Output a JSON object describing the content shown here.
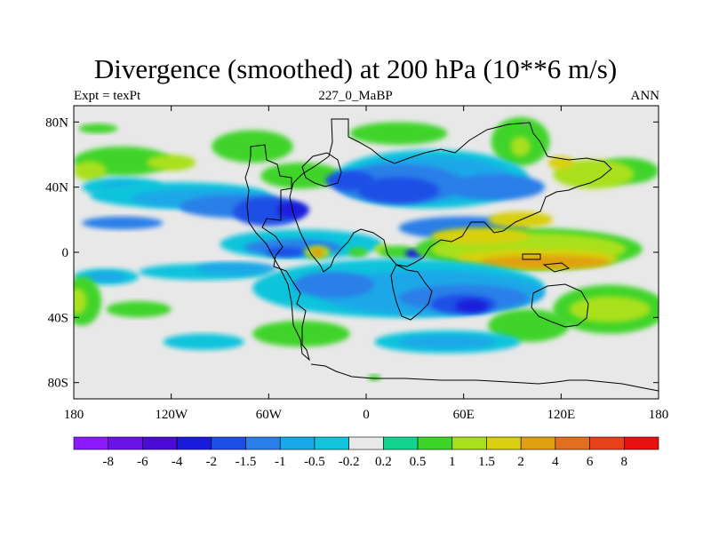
{
  "chart_data": {
    "type": "heatmap",
    "title": "Divergence (smoothed) at 200 hPa (10**6 m/s)",
    "subtitle_left": "Expt = texPt",
    "subtitle_center": "227_0_MaBP",
    "subtitle_right": "ANN",
    "x_axis": {
      "range": [
        -180,
        180
      ],
      "ticks": [
        -180,
        -120,
        -60,
        0,
        60,
        120,
        180
      ],
      "tick_labels": [
        "180",
        "120W",
        "60W",
        "0",
        "60E",
        "120E",
        "180"
      ]
    },
    "y_axis": {
      "range": [
        -90,
        90
      ],
      "ticks": [
        80,
        40,
        0,
        -40,
        -80
      ],
      "tick_labels": [
        "80N",
        "40N",
        "0",
        "40S",
        "80S"
      ]
    },
    "colorbar": {
      "colors": [
        "#8c1aff",
        "#6a12e8",
        "#4b0ad6",
        "#1a1adc",
        "#1d4fe6",
        "#2a7fe8",
        "#1aa8e8",
        "#10c4dc",
        "#e8e8e8",
        "#10d490",
        "#3fd42a",
        "#a8e01a",
        "#d8d010",
        "#e0a010",
        "#e07020",
        "#e8401a",
        "#e81010"
      ],
      "labels": [
        "-8",
        "-6",
        "-4",
        "-2",
        "-1.5",
        "-1",
        "-0.5",
        "-0.2",
        "0.2",
        "0.5",
        "1",
        "1.5",
        "2",
        "4",
        "6",
        "8"
      ]
    },
    "fields": [
      {
        "level": 0.5,
        "lon": -165,
        "lat": 76,
        "rlon": 12,
        "rlat": 3
      },
      {
        "level": 0.5,
        "lon": -70,
        "lat": 65,
        "rlon": 25,
        "rlat": 10
      },
      {
        "level": 0.5,
        "lon": 20,
        "lat": 73,
        "rlon": 30,
        "rlat": 7
      },
      {
        "level": 0.5,
        "lon": 95,
        "lat": 68,
        "rlon": 18,
        "rlat": 15
      },
      {
        "level": 1,
        "lon": 95,
        "lat": 65,
        "rlon": 6,
        "rlat": 6
      },
      {
        "level": 0.5,
        "lon": -150,
        "lat": 56,
        "rlon": 30,
        "rlat": 9
      },
      {
        "level": 0.5,
        "lon": 160,
        "lat": 50,
        "rlon": 20,
        "rlat": 8
      },
      {
        "level": 1,
        "lon": 140,
        "lat": 48,
        "rlon": 25,
        "rlat": 9
      },
      {
        "level": 1,
        "lon": -170,
        "lat": 50,
        "rlon": 10,
        "rlat": 6
      },
      {
        "level": 1,
        "lon": -120,
        "lat": 55,
        "rlon": 15,
        "rlat": 5
      },
      {
        "level": 1.5,
        "lon": 120,
        "lat": 55,
        "rlon": 8,
        "rlat": 4
      },
      {
        "level": 0.5,
        "lon": -40,
        "lat": 47,
        "rlon": 25,
        "rlat": 8
      },
      {
        "level": -0.2,
        "lon": -150,
        "lat": 40,
        "rlon": 25,
        "rlat": 6
      },
      {
        "level": -0.5,
        "lon": -150,
        "lat": 40,
        "rlon": 12,
        "rlat": 3
      },
      {
        "level": -0.2,
        "lon": 40,
        "lat": 45,
        "rlon": 60,
        "rlat": 18
      },
      {
        "level": -0.5,
        "lon": 40,
        "lat": 45,
        "rlon": 50,
        "rlat": 14
      },
      {
        "level": -1,
        "lon": 20,
        "lat": 42,
        "rlon": 40,
        "rlat": 12
      },
      {
        "level": -1,
        "lon": 80,
        "lat": 40,
        "rlon": 30,
        "rlat": 8
      },
      {
        "level": -1.5,
        "lon": 20,
        "lat": 38,
        "rlon": 25,
        "rlat": 8
      },
      {
        "level": -1.5,
        "lon": -10,
        "lat": 44,
        "rlon": 15,
        "rlat": 6
      },
      {
        "level": -0.2,
        "lon": -115,
        "lat": 35,
        "rlon": 55,
        "rlat": 8
      },
      {
        "level": -0.5,
        "lon": -100,
        "lat": 33,
        "rlon": 45,
        "rlat": 6
      },
      {
        "level": -1,
        "lon": -80,
        "lat": 28,
        "rlon": 35,
        "rlat": 7
      },
      {
        "level": -1.5,
        "lon": -60,
        "lat": 25,
        "rlon": 22,
        "rlat": 9
      },
      {
        "level": -2,
        "lon": -45,
        "lat": 26,
        "rlon": 10,
        "rlat": 5
      },
      {
        "level": -1,
        "lon": 60,
        "lat": 15,
        "rlon": 40,
        "rlat": 7
      },
      {
        "level": -1.5,
        "lon": 80,
        "lat": 12,
        "rlon": 15,
        "rlat": 3
      },
      {
        "level": -1,
        "lon": -150,
        "lat": 18,
        "rlon": 25,
        "rlat": 4
      },
      {
        "level": -0.2,
        "lon": -40,
        "lat": 5,
        "rlon": 50,
        "rlat": 9
      },
      {
        "level": -1,
        "lon": -45,
        "lat": 3,
        "rlon": 30,
        "rlat": 5
      },
      {
        "level": -1.5,
        "lon": -50,
        "lat": 0,
        "rlon": 12,
        "rlat": 3
      },
      {
        "level": 1,
        "lon": -30,
        "lat": 0,
        "rlon": 8,
        "rlat": 4
      },
      {
        "level": 2,
        "lon": -30,
        "lat": 0,
        "rlon": 4,
        "rlat": 3
      },
      {
        "level": 0.5,
        "lon": -5,
        "lat": 0,
        "rlon": 6,
        "rlat": 3
      },
      {
        "level": 1,
        "lon": 10,
        "lat": 2,
        "rlon": 5,
        "rlat": 3
      },
      {
        "level": 0.5,
        "lon": 20,
        "lat": 0,
        "rlon": 12,
        "rlat": 4
      },
      {
        "level": -2,
        "lon": 30,
        "lat": -1,
        "rlon": 6,
        "rlat": 3
      },
      {
        "level": 0.5,
        "lon": 100,
        "lat": 2,
        "rlon": 70,
        "rlat": 13
      },
      {
        "level": 1,
        "lon": 100,
        "lat": 2,
        "rlon": 60,
        "rlat": 10
      },
      {
        "level": 1.5,
        "lon": 105,
        "lat": -4,
        "rlon": 50,
        "rlat": 6
      },
      {
        "level": 2,
        "lon": 110,
        "lat": -6,
        "rlon": 40,
        "rlat": 4
      },
      {
        "level": 1.5,
        "lon": 70,
        "lat": 10,
        "rlon": 30,
        "rlat": 5
      },
      {
        "level": 1.5,
        "lon": 95,
        "lat": 20,
        "rlon": 20,
        "rlat": 5
      },
      {
        "level": -0.2,
        "lon": -160,
        "lat": -15,
        "rlon": 20,
        "rlat": 5
      },
      {
        "level": -0.5,
        "lon": -160,
        "lat": -15,
        "rlon": 12,
        "rlat": 3
      },
      {
        "level": -0.2,
        "lon": -100,
        "lat": -12,
        "rlon": 40,
        "rlat": 5
      },
      {
        "level": -0.5,
        "lon": -80,
        "lat": -10,
        "rlon": 25,
        "rlat": 4
      },
      {
        "level": -0.2,
        "lon": 20,
        "lat": -22,
        "rlon": 90,
        "rlat": 18
      },
      {
        "level": -0.5,
        "lon": 40,
        "lat": -25,
        "rlon": 70,
        "rlat": 14
      },
      {
        "level": -1,
        "lon": 60,
        "lat": -28,
        "rlon": 40,
        "rlat": 8
      },
      {
        "level": -1,
        "lon": -20,
        "lat": -20,
        "rlon": 25,
        "rlat": 8
      },
      {
        "level": -1.5,
        "lon": 60,
        "lat": -32,
        "rlon": 20,
        "rlat": 6
      },
      {
        "level": -2,
        "lon": 65,
        "lat": -33,
        "rlon": 10,
        "rlat": 4
      },
      {
        "level": 0.5,
        "lon": -175,
        "lat": -30,
        "rlon": 12,
        "rlat": 15
      },
      {
        "level": 1,
        "lon": -178,
        "lat": -30,
        "rlon": 6,
        "rlat": 8
      },
      {
        "level": 0.5,
        "lon": -140,
        "lat": -35,
        "rlon": 20,
        "rlat": 5
      },
      {
        "level": 0.5,
        "lon": 150,
        "lat": -35,
        "rlon": 35,
        "rlat": 15
      },
      {
        "level": 1,
        "lon": 150,
        "lat": -35,
        "rlon": 25,
        "rlat": 8
      },
      {
        "level": 0.5,
        "lon": 100,
        "lat": -45,
        "rlon": 25,
        "rlat": 10
      },
      {
        "level": -0.2,
        "lon": 50,
        "lat": -55,
        "rlon": 45,
        "rlat": 7
      },
      {
        "level": -0.5,
        "lon": 50,
        "lat": -55,
        "rlon": 30,
        "rlat": 4
      },
      {
        "level": 0.5,
        "lon": -40,
        "lat": -50,
        "rlon": 30,
        "rlat": 8
      },
      {
        "level": -0.2,
        "lon": -100,
        "lat": -55,
        "rlon": 25,
        "rlat": 5
      },
      {
        "level": 0.5,
        "lon": 5,
        "lat": -77,
        "rlon": 4,
        "rlat": 2
      }
    ]
  }
}
